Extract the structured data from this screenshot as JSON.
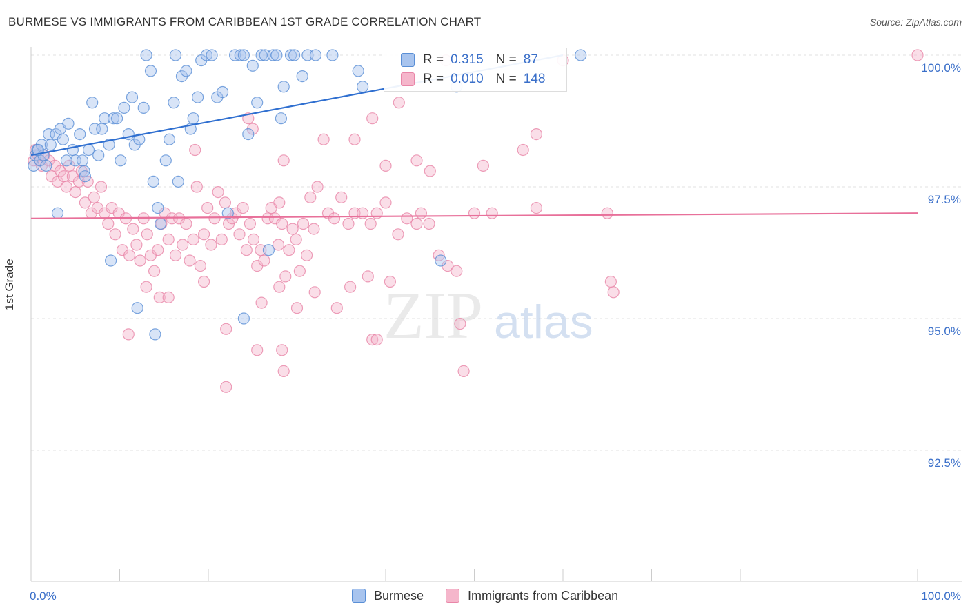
{
  "title": "BURMESE VS IMMIGRANTS FROM CARIBBEAN 1ST GRADE CORRELATION CHART",
  "source": "Source: ZipAtlas.com",
  "watermark": {
    "zip": "ZIP",
    "atlas": "atlas"
  },
  "legend_top": {
    "rows": [
      {
        "r_label": "R =",
        "r_value": "0.315",
        "n_label": "N =",
        "n_value": "87"
      },
      {
        "r_label": "R =",
        "r_value": "0.010",
        "n_label": "N =",
        "n_value": "148"
      }
    ]
  },
  "legend_bottom": {
    "items": [
      "Burmese",
      "Immigrants from Caribbean"
    ]
  },
  "colors": {
    "blue_fill": "#a8c4ee",
    "blue_stroke": "#5a8fd6",
    "blue_line": "#2f6fd0",
    "pink_fill": "#f5b6cb",
    "pink_stroke": "#e986a8",
    "pink_line": "#e8709a",
    "tick_text": "#3a6fc9",
    "grid": "#e2e2e2"
  },
  "chart_data": {
    "type": "scatter",
    "title": "BURMESE VS IMMIGRANTS FROM CARIBBEAN 1ST GRADE CORRELATION CHART",
    "xlabel": "",
    "ylabel": "1st Grade",
    "xlim": [
      0,
      100
    ],
    "ylim": [
      90.0,
      100.5
    ],
    "x_tick_labels": [
      "0.0%",
      "100.0%"
    ],
    "y_ticks": [
      92.5,
      95.0,
      97.5,
      100.0
    ],
    "y_tick_labels": [
      "92.5%",
      "95.0%",
      "97.5%",
      "100.0%"
    ],
    "grid": true,
    "legend_position": "top-center",
    "series": [
      {
        "name": "Burmese",
        "color": "#5a8fd6",
        "R": 0.315,
        "N": 87,
        "trend": {
          "x": [
            0,
            60
          ],
          "y": [
            98.1,
            100.0
          ]
        },
        "points": [
          [
            0.3,
            97.9
          ],
          [
            0.5,
            98.1
          ],
          [
            0.7,
            98.2
          ],
          [
            1.0,
            98.0
          ],
          [
            1.2,
            98.3
          ],
          [
            1.4,
            98.1
          ],
          [
            2.0,
            98.5
          ],
          [
            2.2,
            98.3
          ],
          [
            2.8,
            98.5
          ],
          [
            3.3,
            98.6
          ],
          [
            3.6,
            98.4
          ],
          [
            4.2,
            98.7
          ],
          [
            4.7,
            98.2
          ],
          [
            5.0,
            98.0
          ],
          [
            5.5,
            98.5
          ],
          [
            6.0,
            97.8
          ],
          [
            6.5,
            98.2
          ],
          [
            6.9,
            99.1
          ],
          [
            7.2,
            98.6
          ],
          [
            7.6,
            98.1
          ],
          [
            8.0,
            98.6
          ],
          [
            8.3,
            98.8
          ],
          [
            8.8,
            98.3
          ],
          [
            9.3,
            98.8
          ],
          [
            9.7,
            98.8
          ],
          [
            10.1,
            98.0
          ],
          [
            10.5,
            99.0
          ],
          [
            11.0,
            98.5
          ],
          [
            11.4,
            99.2
          ],
          [
            11.7,
            98.3
          ],
          [
            12.2,
            98.4
          ],
          [
            12.7,
            99.0
          ],
          [
            13.5,
            99.7
          ],
          [
            13.8,
            97.6
          ],
          [
            14.3,
            97.1
          ],
          [
            14.6,
            96.8
          ],
          [
            15.2,
            98.0
          ],
          [
            15.6,
            98.4
          ],
          [
            16.1,
            99.1
          ],
          [
            16.6,
            97.6
          ],
          [
            17.0,
            99.6
          ],
          [
            17.5,
            99.7
          ],
          [
            18.0,
            98.6
          ],
          [
            18.3,
            98.8
          ],
          [
            18.8,
            99.2
          ],
          [
            19.2,
            99.9
          ],
          [
            19.8,
            100.0
          ],
          [
            20.4,
            100.0
          ],
          [
            21.0,
            99.2
          ],
          [
            21.6,
            99.3
          ],
          [
            22.2,
            97.0
          ],
          [
            23.0,
            100.0
          ],
          [
            23.6,
            100.0
          ],
          [
            24.0,
            100.0
          ],
          [
            24.5,
            98.5
          ],
          [
            25.0,
            99.8
          ],
          [
            25.5,
            99.1
          ],
          [
            26.0,
            100.0
          ],
          [
            26.4,
            100.0
          ],
          [
            26.8,
            96.3
          ],
          [
            27.3,
            100.0
          ],
          [
            27.7,
            100.0
          ],
          [
            28.2,
            98.8
          ],
          [
            28.5,
            99.4
          ],
          [
            29.3,
            100.0
          ],
          [
            29.7,
            100.0
          ],
          [
            30.6,
            99.6
          ],
          [
            31.2,
            100.0
          ],
          [
            32.1,
            100.0
          ],
          [
            34.0,
            100.0
          ],
          [
            36.9,
            99.7
          ],
          [
            37.4,
            99.4
          ],
          [
            46.2,
            96.1
          ],
          [
            48.0,
            99.4
          ],
          [
            62.0,
            100.0
          ],
          [
            3.0,
            97.0
          ],
          [
            9.0,
            96.1
          ],
          [
            12.0,
            95.2
          ],
          [
            14.0,
            94.7
          ],
          [
            24.0,
            95.0
          ],
          [
            16.3,
            100.0
          ],
          [
            13.0,
            100.0
          ],
          [
            5.8,
            98.0
          ],
          [
            6.1,
            97.7
          ],
          [
            4.0,
            98.0
          ],
          [
            0.8,
            98.2
          ],
          [
            1.7,
            97.9
          ]
        ]
      },
      {
        "name": "Immigrants from Caribbean",
        "color": "#e986a8",
        "R": 0.01,
        "N": 148,
        "trend": {
          "x": [
            0,
            100
          ],
          "y": [
            96.9,
            97.0
          ]
        },
        "points": [
          [
            0.3,
            98.0
          ],
          [
            0.5,
            98.2
          ],
          [
            0.8,
            98.1
          ],
          [
            1.0,
            98.0
          ],
          [
            1.2,
            97.9
          ],
          [
            1.5,
            98.1
          ],
          [
            2.0,
            98.0
          ],
          [
            2.3,
            97.7
          ],
          [
            2.7,
            97.9
          ],
          [
            3.0,
            97.6
          ],
          [
            3.3,
            97.8
          ],
          [
            3.7,
            97.7
          ],
          [
            4.0,
            97.5
          ],
          [
            4.3,
            97.9
          ],
          [
            4.7,
            97.7
          ],
          [
            5.0,
            97.4
          ],
          [
            5.4,
            97.6
          ],
          [
            5.7,
            97.8
          ],
          [
            6.1,
            97.2
          ],
          [
            6.4,
            97.6
          ],
          [
            6.8,
            97.0
          ],
          [
            7.1,
            97.3
          ],
          [
            7.5,
            97.1
          ],
          [
            7.9,
            97.5
          ],
          [
            8.3,
            97.0
          ],
          [
            8.7,
            96.8
          ],
          [
            9.1,
            97.1
          ],
          [
            9.5,
            96.6
          ],
          [
            9.9,
            97.0
          ],
          [
            10.3,
            96.3
          ],
          [
            10.7,
            96.9
          ],
          [
            11.1,
            96.2
          ],
          [
            11.5,
            96.7
          ],
          [
            11.9,
            96.4
          ],
          [
            12.3,
            96.1
          ],
          [
            12.7,
            96.9
          ],
          [
            13.1,
            96.6
          ],
          [
            13.5,
            96.2
          ],
          [
            13.9,
            95.9
          ],
          [
            14.3,
            96.3
          ],
          [
            14.7,
            96.8
          ],
          [
            15.1,
            97.0
          ],
          [
            15.5,
            96.5
          ],
          [
            15.9,
            96.9
          ],
          [
            16.3,
            96.2
          ],
          [
            16.7,
            96.9
          ],
          [
            17.1,
            96.4
          ],
          [
            17.5,
            96.8
          ],
          [
            17.9,
            96.1
          ],
          [
            18.3,
            96.5
          ],
          [
            18.7,
            97.5
          ],
          [
            19.1,
            96.0
          ],
          [
            19.5,
            96.6
          ],
          [
            19.9,
            97.1
          ],
          [
            20.3,
            96.4
          ],
          [
            20.7,
            96.9
          ],
          [
            21.1,
            97.4
          ],
          [
            21.5,
            96.5
          ],
          [
            21.9,
            97.2
          ],
          [
            22.3,
            96.8
          ],
          [
            22.7,
            96.9
          ],
          [
            23.1,
            97.0
          ],
          [
            23.5,
            96.6
          ],
          [
            23.9,
            97.1
          ],
          [
            24.3,
            96.3
          ],
          [
            24.7,
            96.8
          ],
          [
            25.1,
            96.5
          ],
          [
            25.5,
            96.0
          ],
          [
            25.9,
            96.3
          ],
          [
            26.3,
            96.1
          ],
          [
            26.7,
            96.9
          ],
          [
            27.1,
            97.1
          ],
          [
            27.5,
            96.9
          ],
          [
            27.9,
            96.4
          ],
          [
            28.3,
            96.8
          ],
          [
            28.7,
            95.8
          ],
          [
            29.1,
            96.3
          ],
          [
            29.5,
            96.7
          ],
          [
            29.9,
            96.5
          ],
          [
            30.3,
            95.9
          ],
          [
            30.7,
            96.8
          ],
          [
            31.1,
            96.2
          ],
          [
            31.5,
            97.3
          ],
          [
            31.9,
            96.7
          ],
          [
            32.3,
            97.5
          ],
          [
            33.5,
            97.0
          ],
          [
            34.2,
            96.9
          ],
          [
            35.0,
            97.3
          ],
          [
            35.8,
            96.8
          ],
          [
            36.5,
            97.0
          ],
          [
            37.4,
            97.0
          ],
          [
            38.3,
            96.8
          ],
          [
            39.0,
            97.0
          ],
          [
            40.0,
            97.2
          ],
          [
            41.4,
            96.6
          ],
          [
            42.4,
            96.9
          ],
          [
            43.5,
            96.8
          ],
          [
            44.0,
            97.0
          ],
          [
            44.9,
            96.8
          ],
          [
            46.0,
            96.2
          ],
          [
            47.0,
            96.0
          ],
          [
            48.0,
            95.9
          ],
          [
            50.0,
            97.0
          ],
          [
            52.0,
            97.0
          ],
          [
            57.0,
            97.1
          ],
          [
            65.0,
            97.0
          ],
          [
            65.4,
            95.7
          ],
          [
            65.7,
            95.5
          ],
          [
            13.0,
            95.6
          ],
          [
            14.5,
            95.4
          ],
          [
            15.5,
            95.4
          ],
          [
            19.5,
            95.7
          ],
          [
            22.0,
            94.8
          ],
          [
            26.0,
            95.3
          ],
          [
            28.0,
            95.6
          ],
          [
            30.0,
            95.2
          ],
          [
            32.0,
            95.5
          ],
          [
            34.5,
            95.2
          ],
          [
            36.0,
            95.6
          ],
          [
            38.0,
            95.8
          ],
          [
            40.5,
            95.7
          ],
          [
            11.0,
            94.7
          ],
          [
            25.5,
            94.4
          ],
          [
            28.5,
            94.0
          ],
          [
            28.3,
            94.4
          ],
          [
            38.5,
            94.6
          ],
          [
            39.0,
            94.6
          ],
          [
            48.4,
            94.9
          ],
          [
            22.0,
            93.7
          ],
          [
            48.8,
            94.0
          ],
          [
            18.5,
            98.2
          ],
          [
            24.5,
            98.8
          ],
          [
            25.0,
            98.6
          ],
          [
            28.5,
            98.0
          ],
          [
            33.0,
            98.4
          ],
          [
            36.5,
            98.4
          ],
          [
            38.5,
            98.8
          ],
          [
            40.0,
            97.9
          ],
          [
            41.5,
            99.1
          ],
          [
            43.5,
            98.0
          ],
          [
            45.0,
            97.8
          ],
          [
            46.8,
            99.9
          ],
          [
            51.0,
            97.9
          ],
          [
            55.5,
            98.2
          ],
          [
            57.0,
            98.5
          ],
          [
            60.0,
            99.9
          ],
          [
            100.0,
            100.0
          ],
          [
            28.0,
            97.2
          ]
        ]
      }
    ]
  }
}
